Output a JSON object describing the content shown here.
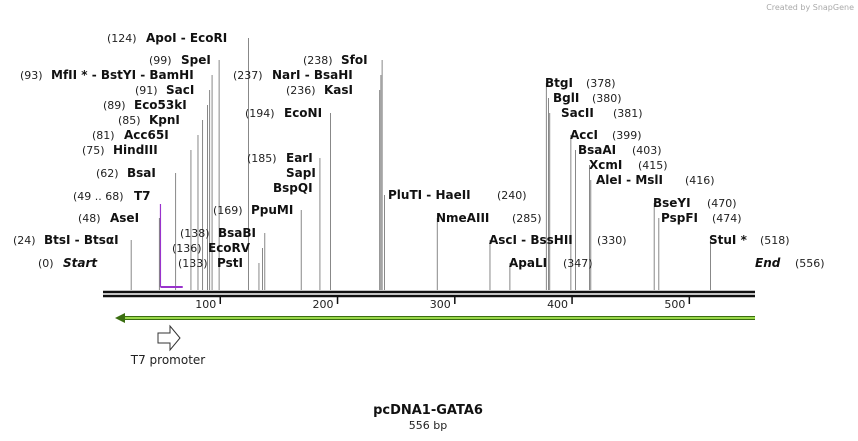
{
  "header": {
    "credit": "Created by SnapGene"
  },
  "sites": [
    {
      "pos": "(124)",
      "name": "ApoI  -  EcoRI"
    },
    {
      "pos": "(99)",
      "name": "SpeI"
    },
    {
      "pos": "(93)",
      "name": "MfII *  -  BstYI  -  BamHI"
    },
    {
      "pos": "(91)",
      "name": "SacI"
    },
    {
      "pos": "(89)",
      "name": "Eco53kI"
    },
    {
      "pos": "(85)",
      "name": "KpnI"
    },
    {
      "pos": "(81)",
      "name": "Acc65I"
    },
    {
      "pos": "(75)",
      "name": "HindIII"
    },
    {
      "pos": "(62)",
      "name": "BsaI"
    },
    {
      "pos": "(49 .. 68)",
      "name": "T7"
    },
    {
      "pos": "(48)",
      "name": "AseI"
    },
    {
      "pos": "(24)",
      "name": "BtsI  -  BtsαI"
    },
    {
      "pos": "(0)",
      "name": "Start"
    },
    {
      "pos": "(238)",
      "name": "SfoI"
    },
    {
      "pos": "(237)",
      "name": "NarI  -  BsaHI"
    },
    {
      "pos": "(236)",
      "name": "KasI"
    },
    {
      "pos": "(194)",
      "name": "EcoNI"
    },
    {
      "pos": "(185)",
      "name": "EarI"
    },
    {
      "name": "SapI"
    },
    {
      "name": "BspQI"
    },
    {
      "pos": "(169)",
      "name": "PpuMI"
    },
    {
      "pos": "(138)",
      "name": "BsaBI"
    },
    {
      "pos": "(136)",
      "name": "EcoRV"
    },
    {
      "pos": "(133)",
      "name": "PstI"
    },
    {
      "pos": "(240)",
      "name": "PluTI  -  HaeII"
    },
    {
      "pos": "(285)",
      "name": "NmeAIII"
    },
    {
      "pos": "(330)",
      "name": "AscI  -  BssHII"
    },
    {
      "pos": "(347)",
      "name": "ApaLI"
    },
    {
      "pos": "(378)",
      "name": "BtgI"
    },
    {
      "pos": "(380)",
      "name": "BglI"
    },
    {
      "pos": "(381)",
      "name": "SacII"
    },
    {
      "pos": "(399)",
      "name": "AccI"
    },
    {
      "pos": "(403)",
      "name": "BsaAI"
    },
    {
      "pos": "(415)",
      "name": "XcmI"
    },
    {
      "pos": "(416)",
      "name": "AleI  -  MslI"
    },
    {
      "pos": "(470)",
      "name": "BseYI"
    },
    {
      "pos": "(474)",
      "name": "PspFI"
    },
    {
      "pos": "(518)",
      "name": "StuI *"
    },
    {
      "pos": "(556)",
      "name": "End"
    }
  ],
  "ruler": [
    "100",
    "200",
    "300",
    "400",
    "500"
  ],
  "features": [
    {
      "label": "T7 promoter"
    }
  ],
  "footer": {
    "title": "pcDNA1-GATA6",
    "length": "556 bp"
  }
}
